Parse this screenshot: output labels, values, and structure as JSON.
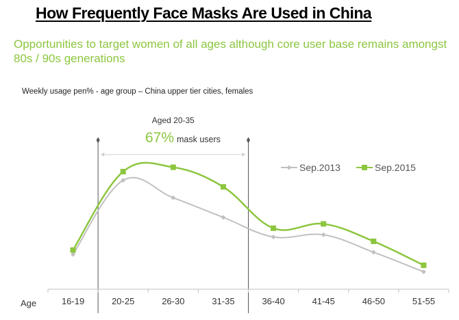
{
  "header": {
    "title": "How Frequently Face Masks Are Used in China",
    "subtitle": "Opportunities to target women of all ages although core user base remains amongst 80s / 90s generations"
  },
  "chart_data": {
    "type": "line",
    "title": "Weekly usage pen% - age group – China upper tier cities, females",
    "xlabel": "Age",
    "ylabel": "",
    "categories": [
      "16-19",
      "20-25",
      "26-30",
      "31-35",
      "36-40",
      "41-45",
      "46-50",
      "51-55"
    ],
    "series": [
      {
        "name": "Sep.2013",
        "values": [
          16,
          50,
          42,
          33,
          24,
          25,
          17,
          8
        ],
        "color": "#c0c0c0",
        "marker": "diamond"
      },
      {
        "name": "Sep.2015",
        "values": [
          18,
          54,
          56,
          47,
          28,
          30,
          22,
          11
        ],
        "color": "#8cc63f",
        "marker": "square"
      }
    ],
    "ylim": [
      0,
      70
    ],
    "grid": false,
    "legend": "top-right",
    "annotation": {
      "label": "Aged 20-35",
      "value_text": "67%",
      "value_suffix": "mask users",
      "span_categories": [
        "20-25",
        "31-35"
      ]
    }
  },
  "colors": {
    "accent_green": "#8cc63f",
    "series_grey": "#c0c0c0",
    "annotation_line": "#555555"
  }
}
